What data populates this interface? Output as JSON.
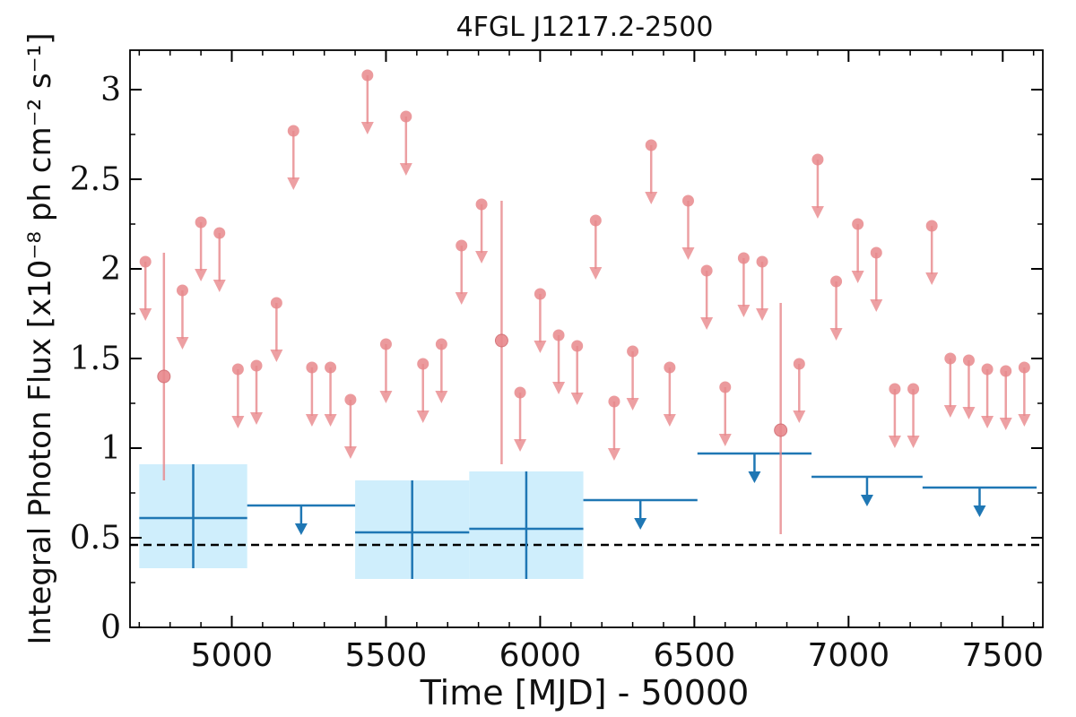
{
  "chart_data": {
    "type": "scatter",
    "title": "4FGL J1217.2-2500",
    "xlabel": "Time [MJD] - 50000",
    "ylabel": "Integral Photon Flux [x10⁻⁸ ph cm⁻² s⁻¹]",
    "xlim": [
      4670,
      7630
    ],
    "ylim": [
      0,
      3.22
    ],
    "x_ticks": [
      5000,
      5500,
      6000,
      6500,
      7000,
      7500
    ],
    "x_tick_labels": [
      "5000",
      "5500",
      "6000",
      "6500",
      "7000",
      "7500"
    ],
    "y_ticks": [
      0,
      0.5,
      1,
      1.5,
      2,
      2.5,
      3
    ],
    "y_tick_labels": [
      "0",
      "0.5",
      "1",
      "1.5",
      "2",
      "2.5",
      "3"
    ],
    "grid": false,
    "reference_line": 0.46,
    "colors": {
      "short_bins": "#e8888c",
      "long_bins": "#1f77b4",
      "long_bins_band": "#cfeefc",
      "reference": "#000000"
    },
    "short_bins": {
      "detections": [
        {
          "x": 4780,
          "y": 1.4,
          "lo": 0.82,
          "hi": 2.09
        },
        {
          "x": 5875,
          "y": 1.6,
          "lo": 0.91,
          "hi": 2.38
        },
        {
          "x": 6780,
          "y": 1.1,
          "lo": 0.52,
          "hi": 1.81
        }
      ],
      "upper_limits": [
        {
          "x": 4720,
          "y": 2.04
        },
        {
          "x": 4840,
          "y": 1.88
        },
        {
          "x": 4900,
          "y": 2.26
        },
        {
          "x": 4960,
          "y": 2.2
        },
        {
          "x": 5020,
          "y": 1.44
        },
        {
          "x": 5080,
          "y": 1.46
        },
        {
          "x": 5145,
          "y": 1.81
        },
        {
          "x": 5200,
          "y": 2.77
        },
        {
          "x": 5260,
          "y": 1.45
        },
        {
          "x": 5320,
          "y": 1.45
        },
        {
          "x": 5385,
          "y": 1.27
        },
        {
          "x": 5440,
          "y": 3.08
        },
        {
          "x": 5500,
          "y": 1.58
        },
        {
          "x": 5565,
          "y": 2.85
        },
        {
          "x": 5620,
          "y": 1.47
        },
        {
          "x": 5680,
          "y": 1.58
        },
        {
          "x": 5745,
          "y": 2.13
        },
        {
          "x": 5810,
          "y": 2.36
        },
        {
          "x": 5935,
          "y": 1.31
        },
        {
          "x": 6000,
          "y": 1.86
        },
        {
          "x": 6060,
          "y": 1.63
        },
        {
          "x": 6120,
          "y": 1.57
        },
        {
          "x": 6180,
          "y": 2.27
        },
        {
          "x": 6240,
          "y": 1.26
        },
        {
          "x": 6300,
          "y": 1.54
        },
        {
          "x": 6360,
          "y": 2.69
        },
        {
          "x": 6420,
          "y": 1.45
        },
        {
          "x": 6480,
          "y": 2.38
        },
        {
          "x": 6540,
          "y": 1.99
        },
        {
          "x": 6600,
          "y": 1.34
        },
        {
          "x": 6660,
          "y": 2.06
        },
        {
          "x": 6720,
          "y": 2.04
        },
        {
          "x": 6840,
          "y": 1.47
        },
        {
          "x": 6900,
          "y": 2.61
        },
        {
          "x": 6960,
          "y": 1.93
        },
        {
          "x": 7030,
          "y": 2.25
        },
        {
          "x": 7090,
          "y": 2.09
        },
        {
          "x": 7150,
          "y": 1.33
        },
        {
          "x": 7210,
          "y": 1.33
        },
        {
          "x": 7270,
          "y": 2.24
        },
        {
          "x": 7330,
          "y": 1.5
        },
        {
          "x": 7390,
          "y": 1.49
        },
        {
          "x": 7450,
          "y": 1.44
        },
        {
          "x": 7510,
          "y": 1.43
        },
        {
          "x": 7570,
          "y": 1.45
        }
      ]
    },
    "long_bins": {
      "detections": [
        {
          "x0": 4700,
          "x1": 5050,
          "y": 0.61,
          "lo": 0.33,
          "hi": 0.91
        },
        {
          "x0": 5400,
          "x1": 5770,
          "y": 0.53,
          "lo": 0.27,
          "hi": 0.82
        },
        {
          "x0": 5770,
          "x1": 6140,
          "y": 0.55,
          "lo": 0.27,
          "hi": 0.87
        }
      ],
      "upper_limits": [
        {
          "x0": 5050,
          "x1": 5400,
          "y": 0.68
        },
        {
          "x0": 6140,
          "x1": 6510,
          "y": 0.71
        },
        {
          "x0": 6510,
          "x1": 6880,
          "y": 0.97
        },
        {
          "x0": 6880,
          "x1": 7240,
          "y": 0.84
        },
        {
          "x0": 7240,
          "x1": 7610,
          "y": 0.78
        }
      ]
    }
  }
}
